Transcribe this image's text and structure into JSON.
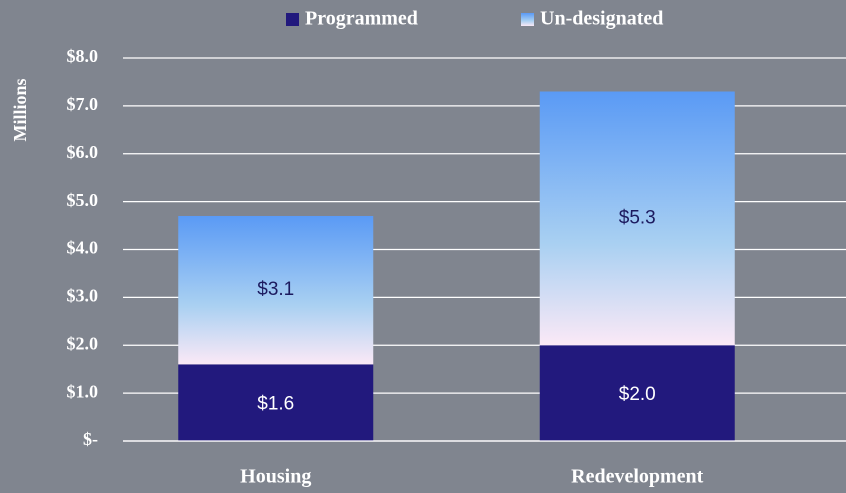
{
  "chart_data": {
    "type": "stacked_bar",
    "y_label": "Millions",
    "categories": [
      "Housing",
      "Redevelopment"
    ],
    "series": [
      {
        "name": "Programmed",
        "color": "#22197d",
        "values": [
          1.6,
          2.0
        ],
        "value_labels": [
          "$1.6",
          "$2.0"
        ]
      },
      {
        "name": "Un-designated",
        "color": "#5a9af5",
        "values": [
          3.1,
          5.3
        ],
        "value_labels": [
          "$3.1",
          "$5.3"
        ]
      }
    ],
    "ylim": [
      0,
      8
    ],
    "yticks": [
      {
        "value": 0,
        "label": "$-"
      },
      {
        "value": 1,
        "label": "$1.0"
      },
      {
        "value": 2,
        "label": "$2.0"
      },
      {
        "value": 3,
        "label": "$3.0"
      },
      {
        "value": 4,
        "label": "$4.0"
      },
      {
        "value": 5,
        "label": "$5.0"
      },
      {
        "value": 6,
        "label": "$6.0"
      },
      {
        "value": 7,
        "label": "$7.0"
      },
      {
        "value": 8,
        "label": "$8.0"
      }
    ],
    "grid": true,
    "legend": "top"
  }
}
